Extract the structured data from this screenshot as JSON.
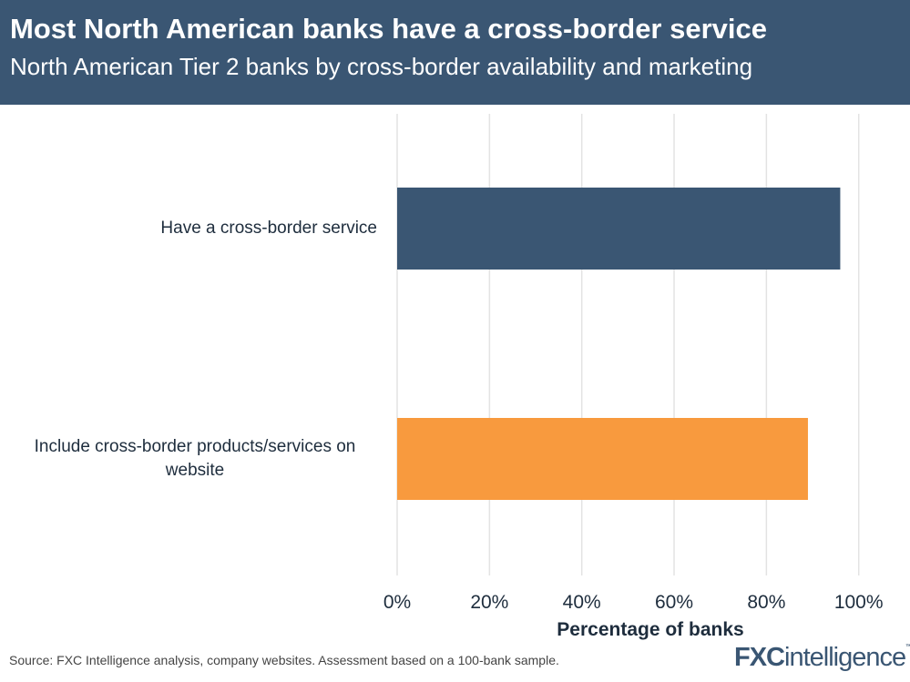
{
  "header": {
    "title": "Most North American banks have a cross-border service",
    "subtitle": "North American Tier 2 banks by cross-border availability and marketing"
  },
  "chart_data": {
    "type": "bar",
    "orientation": "horizontal",
    "categories": [
      "Have a cross-border service",
      "Include cross-border products/services on website"
    ],
    "values": [
      96,
      89
    ],
    "colors": [
      "#3a5673",
      "#f89a3e"
    ],
    "xlabel": "Percentage of banks",
    "ylabel": "",
    "xlim": [
      0,
      100
    ],
    "xticks": [
      "0%",
      "20%",
      "40%",
      "60%",
      "80%",
      "100%"
    ],
    "grid": "vertical"
  },
  "footer": {
    "source": "Source: FXC Intelligence analysis, company websites. Assessment based on a 100-bank sample.",
    "logo": "FXCintelligence"
  }
}
